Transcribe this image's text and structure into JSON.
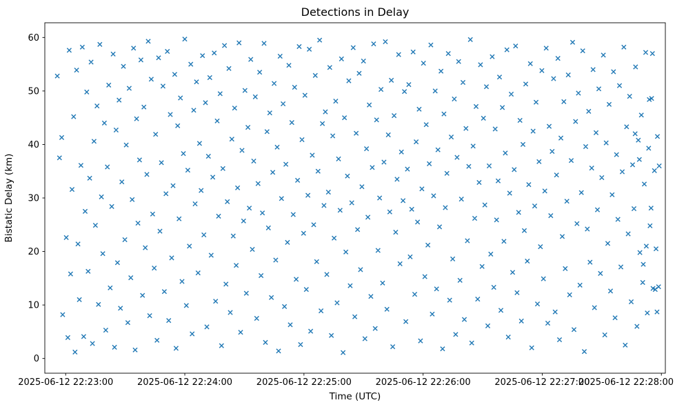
{
  "figure": {
    "title": "Detections in Delay",
    "xlabel": "Time (UTC)",
    "ylabel": "Bistatic Delay (km)"
  },
  "chart_data": {
    "type": "scatter",
    "title": "Detections in Delay",
    "xlabel": "Time (UTC)",
    "ylabel": "Bistatic Delay (km)",
    "marker": "x",
    "marker_color": "#1f77b4",
    "background": "#ffffff",
    "grid": false,
    "legend": "none",
    "x_unit": "seconds since 2025-06-12 22:23:00 UTC",
    "xlim": [
      -10.5,
      302
    ],
    "ylim": [
      -2.75,
      62.75
    ],
    "x_ticks": [
      {
        "value": 0,
        "label": "2025-06-12 22:23:00"
      },
      {
        "value": 60,
        "label": "2025-06-12 22:24:00"
      },
      {
        "value": 120,
        "label": "2025-06-12 22:25:00"
      },
      {
        "value": 180,
        "label": "2025-06-12 22:26:00"
      },
      {
        "value": 240,
        "label": "2025-06-12 22:27:00"
      },
      {
        "value": 300,
        "label": "2025-06-12 22:28:00"
      }
    ],
    "y_ticks": [
      0,
      10,
      20,
      30,
      40,
      50,
      60
    ],
    "points": [
      [
        -4.2,
        52.8
      ],
      [
        -3.1,
        37.5
      ],
      [
        -2.0,
        41.3
      ],
      [
        -1.5,
        8.2
      ],
      [
        0.3,
        22.6
      ],
      [
        1.1,
        3.9
      ],
      [
        1.8,
        57.6
      ],
      [
        2.5,
        15.8
      ],
      [
        3.2,
        31.6
      ],
      [
        4.0,
        45.2
      ],
      [
        4.7,
        1.2
      ],
      [
        5.5,
        53.9
      ],
      [
        6.2,
        21.4
      ],
      [
        6.9,
        11.0
      ],
      [
        7.7,
        36.1
      ],
      [
        8.4,
        58.2
      ],
      [
        9.1,
        4.1
      ],
      [
        9.8,
        27.5
      ],
      [
        10.6,
        49.8
      ],
      [
        11.3,
        16.3
      ],
      [
        12.1,
        33.7
      ],
      [
        12.8,
        55.4
      ],
      [
        13.5,
        2.8
      ],
      [
        14.3,
        40.6
      ],
      [
        15.0,
        24.9
      ],
      [
        15.8,
        47.2
      ],
      [
        16.5,
        10.1
      ],
      [
        17.2,
        58.7
      ],
      [
        18.0,
        30.2
      ],
      [
        18.7,
        19.6
      ],
      [
        19.5,
        44.0
      ],
      [
        20.2,
        5.3
      ],
      [
        21.0,
        35.8
      ],
      [
        21.7,
        51.1
      ],
      [
        22.4,
        13.2
      ],
      [
        23.2,
        28.4
      ],
      [
        23.9,
        56.9
      ],
      [
        24.6,
        2.1
      ],
      [
        25.4,
        42.7
      ],
      [
        26.1,
        17.9
      ],
      [
        26.9,
        48.3
      ],
      [
        27.6,
        9.4
      ],
      [
        28.3,
        33.0
      ],
      [
        29.1,
        54.6
      ],
      [
        29.8,
        22.2
      ],
      [
        30.5,
        39.9
      ],
      [
        31.3,
        6.7
      ],
      [
        32.0,
        50.5
      ],
      [
        32.8,
        15.1
      ],
      [
        33.5,
        29.7
      ],
      [
        34.2,
        58.0
      ],
      [
        35.0,
        1.6
      ],
      [
        35.7,
        44.8
      ],
      [
        36.4,
        25.3
      ],
      [
        37.2,
        37.1
      ],
      [
        37.9,
        55.8
      ],
      [
        38.7,
        11.8
      ],
      [
        39.4,
        47.0
      ],
      [
        40.1,
        20.7
      ],
      [
        40.9,
        34.4
      ],
      [
        41.6,
        59.3
      ],
      [
        42.3,
        8.0
      ],
      [
        43.1,
        52.2
      ],
      [
        43.8,
        27.0
      ],
      [
        44.6,
        16.9
      ],
      [
        45.3,
        41.9
      ],
      [
        46.0,
        3.4
      ],
      [
        46.8,
        56.2
      ],
      [
        47.5,
        23.8
      ],
      [
        48.2,
        36.6
      ],
      [
        49.0,
        50.9
      ],
      [
        49.7,
        12.5
      ],
      [
        50.5,
        30.8
      ],
      [
        51.2,
        57.4
      ],
      [
        51.9,
        7.1
      ],
      [
        52.7,
        45.6
      ],
      [
        53.4,
        18.8
      ],
      [
        54.1,
        32.3
      ],
      [
        54.9,
        53.1
      ],
      [
        55.6,
        1.9
      ],
      [
        56.4,
        43.5
      ],
      [
        57.1,
        26.1
      ],
      [
        57.8,
        48.7
      ],
      [
        58.6,
        14.4
      ],
      [
        59.3,
        38.3
      ],
      [
        60.0,
        59.7
      ],
      [
        60.8,
        9.9
      ],
      [
        61.5,
        35.2
      ],
      [
        62.3,
        21.0
      ],
      [
        63.0,
        55.0
      ],
      [
        63.7,
        4.6
      ],
      [
        64.5,
        46.4
      ],
      [
        65.2,
        28.9
      ],
      [
        65.9,
        51.7
      ],
      [
        66.7,
        16.0
      ],
      [
        67.4,
        40.2
      ],
      [
        68.2,
        31.4
      ],
      [
        68.9,
        56.6
      ],
      [
        69.6,
        23.1
      ],
      [
        70.4,
        47.8
      ],
      [
        71.1,
        5.9
      ],
      [
        71.9,
        37.8
      ],
      [
        72.6,
        52.5
      ],
      [
        73.3,
        19.3
      ],
      [
        74.1,
        33.9
      ],
      [
        74.8,
        57.1
      ],
      [
        75.5,
        10.7
      ],
      [
        76.3,
        44.4
      ],
      [
        77.0,
        26.6
      ],
      [
        77.8,
        49.5
      ],
      [
        78.5,
        2.4
      ],
      [
        79.2,
        35.5
      ],
      [
        80.0,
        58.5
      ],
      [
        80.7,
        13.9
      ],
      [
        81.4,
        29.3
      ],
      [
        82.2,
        54.2
      ],
      [
        82.9,
        8.6
      ],
      [
        83.7,
        41.0
      ],
      [
        84.4,
        22.9
      ],
      [
        85.1,
        46.8
      ],
      [
        85.9,
        17.4
      ],
      [
        86.6,
        31.9
      ],
      [
        87.3,
        59.0
      ],
      [
        88.1,
        4.9
      ],
      [
        88.8,
        38.9
      ],
      [
        89.6,
        25.7
      ],
      [
        90.3,
        50.1
      ],
      [
        91.0,
        12.2
      ],
      [
        91.8,
        43.2
      ],
      [
        92.5,
        28.1
      ],
      [
        93.2,
        55.9
      ],
      [
        94.0,
        20.4
      ],
      [
        94.7,
        36.9
      ],
      [
        95.5,
        48.9
      ],
      [
        96.2,
        7.5
      ],
      [
        96.9,
        32.7
      ],
      [
        97.7,
        53.5
      ],
      [
        98.4,
        15.5
      ],
      [
        99.1,
        27.2
      ],
      [
        99.9,
        58.9
      ],
      [
        100.6,
        3.0
      ],
      [
        101.4,
        42.4
      ],
      [
        102.1,
        24.4
      ],
      [
        102.8,
        45.9
      ],
      [
        103.6,
        11.4
      ],
      [
        104.3,
        34.8
      ],
      [
        105.0,
        51.4
      ],
      [
        105.8,
        18.4
      ],
      [
        106.5,
        39.5
      ],
      [
        107.2,
        1.4
      ],
      [
        108.0,
        56.5
      ],
      [
        108.7,
        29.9
      ],
      [
        109.5,
        47.6
      ],
      [
        110.2,
        9.7
      ],
      [
        110.9,
        36.3
      ],
      [
        111.7,
        21.7
      ],
      [
        112.4,
        54.8
      ],
      [
        113.1,
        6.3
      ],
      [
        113.9,
        44.1
      ],
      [
        114.6,
        26.9
      ],
      [
        115.3,
        50.7
      ],
      [
        116.1,
        14.8
      ],
      [
        116.8,
        33.3
      ],
      [
        117.6,
        58.3
      ],
      [
        118.3,
        2.6
      ],
      [
        119.0,
        40.9
      ],
      [
        119.8,
        23.4
      ],
      [
        120.5,
        49.2
      ],
      [
        121.2,
        12.9
      ],
      [
        122.0,
        30.5
      ],
      [
        122.7,
        57.8
      ],
      [
        123.4,
        5.1
      ],
      [
        124.2,
        38.0
      ],
      [
        124.9,
        25.0
      ],
      [
        125.7,
        52.9
      ],
      [
        126.4,
        18.1
      ],
      [
        127.1,
        35.0
      ],
      [
        127.9,
        59.5
      ],
      [
        128.6,
        8.9
      ],
      [
        129.3,
        43.9
      ],
      [
        130.1,
        28.6
      ],
      [
        130.8,
        46.1
      ],
      [
        131.5,
        15.7
      ],
      [
        132.3,
        31.1
      ],
      [
        133.0,
        54.4
      ],
      [
        133.8,
        4.3
      ],
      [
        134.5,
        41.6
      ],
      [
        135.2,
        22.5
      ],
      [
        136.0,
        48.1
      ],
      [
        136.7,
        10.4
      ],
      [
        137.4,
        37.3
      ],
      [
        138.2,
        27.7
      ],
      [
        138.9,
        56.0
      ],
      [
        139.7,
        1.1
      ],
      [
        140.4,
        45.0
      ],
      [
        141.1,
        19.9
      ],
      [
        141.9,
        34.1
      ],
      [
        142.6,
        51.9
      ],
      [
        143.3,
        13.6
      ],
      [
        144.1,
        29.1
      ],
      [
        144.8,
        58.1
      ],
      [
        145.6,
        7.8
      ],
      [
        146.3,
        42.1
      ],
      [
        147.0,
        24.1
      ],
      [
        147.8,
        53.3
      ],
      [
        148.5,
        16.6
      ],
      [
        149.2,
        32.1
      ],
      [
        150.0,
        55.6
      ],
      [
        150.7,
        3.7
      ],
      [
        151.5,
        39.2
      ],
      [
        152.2,
        26.4
      ],
      [
        152.9,
        47.4
      ],
      [
        153.7,
        11.6
      ],
      [
        154.4,
        35.7
      ],
      [
        155.1,
        58.8
      ],
      [
        155.9,
        5.6
      ],
      [
        156.6,
        44.6
      ],
      [
        157.3,
        20.2
      ],
      [
        158.1,
        30.0
      ],
      [
        158.8,
        50.3
      ],
      [
        159.6,
        14.1
      ],
      [
        160.3,
        36.7
      ],
      [
        161.0,
        59.2
      ],
      [
        161.8,
        9.2
      ],
      [
        162.5,
        41.8
      ],
      [
        163.2,
        27.4
      ],
      [
        164.0,
        52.0
      ],
      [
        164.7,
        2.2
      ],
      [
        165.4,
        45.4
      ],
      [
        166.2,
        23.6
      ],
      [
        166.9,
        33.5
      ],
      [
        167.7,
        56.8
      ],
      [
        168.4,
        17.7
      ],
      [
        169.1,
        38.6
      ],
      [
        169.9,
        29.5
      ],
      [
        170.6,
        49.9
      ],
      [
        171.3,
        6.9
      ],
      [
        172.1,
        35.4
      ],
      [
        172.8,
        51.2
      ],
      [
        173.5,
        19.0
      ],
      [
        174.3,
        27.9
      ],
      [
        175.0,
        57.3
      ],
      [
        175.8,
        12.0
      ],
      [
        176.5,
        40.5
      ],
      [
        177.2,
        25.5
      ],
      [
        178.0,
        46.6
      ],
      [
        178.7,
        3.3
      ],
      [
        179.4,
        31.7
      ],
      [
        180.2,
        55.2
      ],
      [
        180.9,
        15.3
      ],
      [
        181.6,
        43.7
      ],
      [
        182.4,
        21.2
      ],
      [
        183.1,
        36.4
      ],
      [
        183.9,
        58.6
      ],
      [
        184.6,
        8.3
      ],
      [
        185.3,
        30.4
      ],
      [
        186.1,
        50.0
      ],
      [
        186.8,
        13.0
      ],
      [
        187.5,
        39.0
      ],
      [
        188.3,
        24.6
      ],
      [
        189.0,
        53.7
      ],
      [
        189.8,
        1.8
      ],
      [
        190.5,
        45.7
      ],
      [
        191.2,
        28.2
      ],
      [
        192.0,
        34.6
      ],
      [
        192.7,
        57.0
      ],
      [
        193.4,
        10.9
      ],
      [
        194.2,
        41.4
      ],
      [
        194.9,
        18.6
      ],
      [
        195.7,
        48.5
      ],
      [
        196.4,
        4.5
      ],
      [
        197.1,
        37.6
      ],
      [
        197.9,
        55.5
      ],
      [
        198.6,
        14.6
      ],
      [
        199.3,
        29.8
      ],
      [
        200.1,
        51.6
      ],
      [
        200.8,
        7.3
      ],
      [
        201.6,
        43.0
      ],
      [
        202.3,
        22.0
      ],
      [
        203.0,
        35.9
      ],
      [
        203.8,
        59.6
      ],
      [
        204.5,
        2.9
      ],
      [
        205.2,
        39.7
      ],
      [
        206.0,
        26.2
      ],
      [
        206.7,
        47.1
      ],
      [
        207.5,
        11.1
      ],
      [
        208.2,
        32.9
      ],
      [
        208.9,
        54.9
      ],
      [
        209.7,
        17.2
      ],
      [
        210.4,
        44.9
      ],
      [
        211.1,
        28.7
      ],
      [
        211.9,
        50.8
      ],
      [
        212.6,
        6.1
      ],
      [
        213.3,
        36.0
      ],
      [
        214.1,
        19.5
      ],
      [
        214.8,
        56.4
      ],
      [
        215.6,
        13.3
      ],
      [
        216.3,
        42.9
      ],
      [
        217.0,
        25.9
      ],
      [
        217.8,
        33.2
      ],
      [
        218.5,
        52.6
      ],
      [
        219.2,
        9.0
      ],
      [
        219.9,
        46.9
      ],
      [
        220.7,
        21.9
      ],
      [
        221.4,
        38.4
      ],
      [
        222.2,
        57.7
      ],
      [
        222.9,
        4.0
      ],
      [
        223.6,
        30.9
      ],
      [
        224.4,
        49.4
      ],
      [
        225.1,
        16.1
      ],
      [
        225.9,
        35.3
      ],
      [
        226.6,
        58.4
      ],
      [
        227.3,
        12.3
      ],
      [
        228.1,
        27.3
      ],
      [
        228.8,
        44.5
      ],
      [
        229.5,
        7.0
      ],
      [
        230.3,
        40.0
      ],
      [
        231.0,
        23.9
      ],
      [
        231.7,
        51.3
      ],
      [
        232.5,
        18.2
      ],
      [
        233.2,
        32.5
      ],
      [
        234.0,
        55.1
      ],
      [
        234.7,
        2.0
      ],
      [
        235.4,
        42.5
      ],
      [
        236.2,
        28.5
      ],
      [
        236.9,
        47.9
      ],
      [
        237.6,
        10.2
      ],
      [
        238.4,
        36.8
      ],
      [
        239.1,
        20.9
      ],
      [
        239.8,
        53.8
      ],
      [
        240.6,
        14.9
      ],
      [
        241.3,
        31.3
      ],
      [
        242.0,
        58.0
      ],
      [
        242.8,
        6.6
      ],
      [
        243.5,
        43.4
      ],
      [
        244.3,
        26.7
      ],
      [
        245.0,
        38.7
      ],
      [
        245.7,
        52.3
      ],
      [
        246.5,
        8.7
      ],
      [
        247.2,
        34.3
      ],
      [
        247.9,
        56.1
      ],
      [
        248.7,
        3.5
      ],
      [
        249.4,
        41.2
      ],
      [
        250.1,
        22.8
      ],
      [
        250.9,
        48.0
      ],
      [
        251.6,
        16.8
      ],
      [
        252.4,
        29.4
      ],
      [
        253.1,
        53.0
      ],
      [
        253.8,
        11.9
      ],
      [
        254.6,
        37.0
      ],
      [
        255.3,
        59.1
      ],
      [
        256.0,
        5.4
      ],
      [
        256.8,
        44.3
      ],
      [
        257.5,
        25.2
      ],
      [
        258.2,
        49.6
      ],
      [
        259.0,
        13.7
      ],
      [
        259.7,
        31.0
      ],
      [
        260.4,
        57.5
      ],
      [
        261.2,
        1.3
      ],
      [
        261.9,
        39.6
      ],
      [
        262.7,
        24.2
      ],
      [
        263.4,
        46.2
      ],
      [
        264.1,
        18.0
      ],
      [
        264.9,
        35.6
      ],
      [
        265.6,
        54.0
      ],
      [
        266.3,
        9.5
      ],
      [
        267.1,
        42.2
      ],
      [
        267.8,
        27.8
      ],
      [
        268.5,
        50.4
      ],
      [
        269.3,
        15.9
      ],
      [
        270.0,
        33.8
      ],
      [
        270.8,
        56.7
      ],
      [
        271.5,
        4.4
      ],
      [
        272.2,
        40.3
      ],
      [
        273.0,
        21.5
      ],
      [
        273.7,
        47.5
      ],
      [
        274.4,
        12.6
      ],
      [
        275.2,
        30.6
      ],
      [
        275.9,
        53.6
      ],
      [
        276.7,
        7.6
      ],
      [
        277.4,
        38.1
      ],
      [
        278.1,
        26.0
      ],
      [
        278.9,
        51.0
      ],
      [
        279.6,
        17.1
      ],
      [
        280.3,
        34.9
      ],
      [
        281.1,
        58.2
      ],
      [
        281.8,
        2.5
      ],
      [
        282.5,
        43.3
      ],
      [
        283.3,
        23.3
      ],
      [
        284.0,
        49.0
      ],
      [
        284.8,
        10.6
      ],
      [
        285.5,
        36.2
      ],
      [
        286.2,
        28.0
      ],
      [
        287.0,
        54.5
      ],
      [
        287.7,
        6.0
      ],
      [
        288.4,
        40.8
      ],
      [
        289.2,
        19.8
      ],
      [
        289.9,
        45.5
      ],
      [
        290.6,
        14.2
      ],
      [
        291.4,
        32.6
      ],
      [
        292.1,
        57.2
      ],
      [
        292.9,
        8.5
      ],
      [
        293.6,
        39.3
      ],
      [
        294.3,
        24.8
      ],
      [
        295.1,
        48.6
      ],
      [
        295.8,
        13.1
      ],
      [
        296.5,
        35.1
      ],
      [
        297.3,
        20.5
      ],
      [
        298.0,
        41.5
      ],
      [
        298.6,
        13.4
      ],
      [
        298.9,
        36.0
      ],
      [
        297.8,
        8.7
      ],
      [
        296.9,
        12.9
      ],
      [
        295.5,
        57.0
      ],
      [
        294.8,
        28.1
      ],
      [
        293.9,
        48.4
      ],
      [
        292.4,
        21.0
      ],
      [
        290.9,
        17.6
      ],
      [
        288.9,
        37.2
      ],
      [
        286.8,
        42.0
      ]
    ]
  }
}
